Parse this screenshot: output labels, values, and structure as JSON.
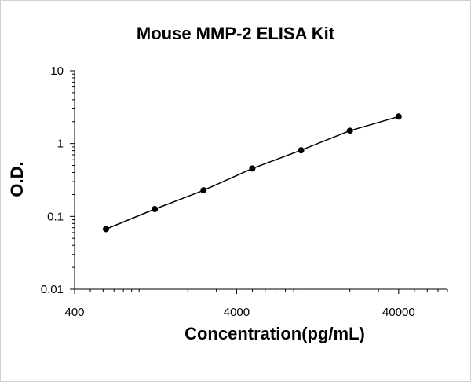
{
  "chart_data": {
    "type": "scatter",
    "title": "Mouse MMP-2 ELISA Kit",
    "xlabel": "Concentration(pg/mL)",
    "ylabel": "O.D.",
    "x_scale": "log",
    "y_scale": "log",
    "xlim": [
      400,
      80000
    ],
    "ylim": [
      0.01,
      10
    ],
    "x_ticks": [
      400,
      4000,
      40000
    ],
    "x_tick_labels": [
      "400",
      "4000",
      "40000"
    ],
    "y_ticks": [
      0.01,
      0.1,
      1,
      10
    ],
    "y_tick_labels": [
      "0.01",
      "0.1",
      "1",
      "10"
    ],
    "grid": false,
    "series": [
      {
        "points": [
          {
            "x": 625,
            "y": 0.067
          },
          {
            "x": 1250,
            "y": 0.126
          },
          {
            "x": 2500,
            "y": 0.228
          },
          {
            "x": 5000,
            "y": 0.455
          },
          {
            "x": 10000,
            "y": 0.81
          },
          {
            "x": 20000,
            "y": 1.5
          },
          {
            "x": 40000,
            "y": 2.35
          }
        ],
        "color": "#000000",
        "fit_line": true
      }
    ]
  }
}
